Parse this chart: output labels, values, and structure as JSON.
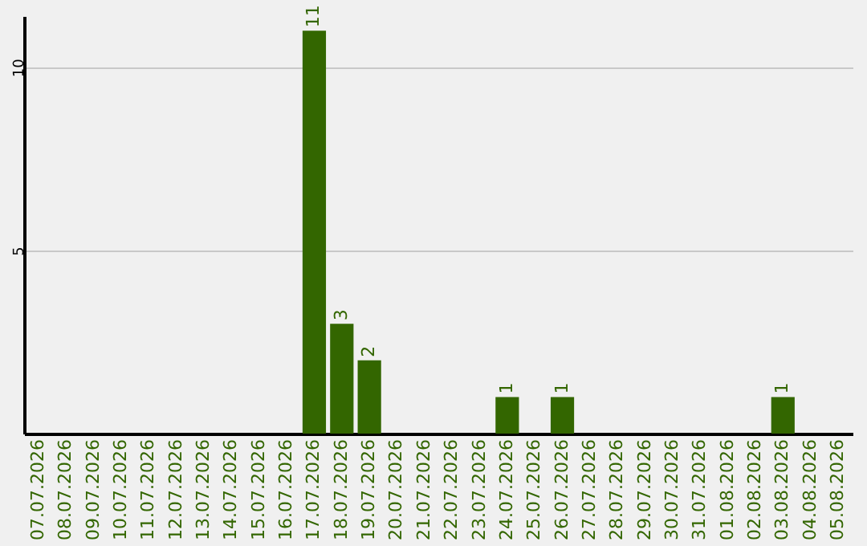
{
  "chart_data": {
    "type": "bar",
    "categories": [
      "07.07.2026",
      "08.07.2026",
      "09.07.2026",
      "10.07.2026",
      "11.07.2026",
      "12.07.2026",
      "13.07.2026",
      "14.07.2026",
      "15.07.2026",
      "16.07.2026",
      "17.07.2026",
      "18.07.2026",
      "19.07.2026",
      "20.07.2026",
      "21.07.2026",
      "22.07.2026",
      "23.07.2026",
      "24.07.2026",
      "25.07.2026",
      "26.07.2026",
      "27.07.2026",
      "28.07.2026",
      "29.07.2026",
      "30.07.2026",
      "31.07.2026",
      "01.08.2026",
      "02.08.2026",
      "03.08.2026",
      "04.08.2026",
      "05.08.2026"
    ],
    "values": [
      0,
      0,
      0,
      0,
      0,
      0,
      0,
      0,
      0,
      0,
      11,
      3,
      2,
      0,
      0,
      0,
      0,
      1,
      0,
      1,
      0,
      0,
      0,
      0,
      0,
      0,
      0,
      1,
      0,
      0
    ],
    "value_labels": [
      null,
      null,
      null,
      null,
      null,
      null,
      null,
      null,
      null,
      null,
      "11",
      "3",
      "2",
      null,
      null,
      null,
      null,
      "1",
      null,
      "1",
      null,
      null,
      null,
      null,
      null,
      null,
      null,
      "1",
      null,
      null
    ],
    "color": "#336600",
    "ylim": [
      0,
      11.4
    ],
    "yticks": [
      5,
      10
    ],
    "grid": "y"
  }
}
